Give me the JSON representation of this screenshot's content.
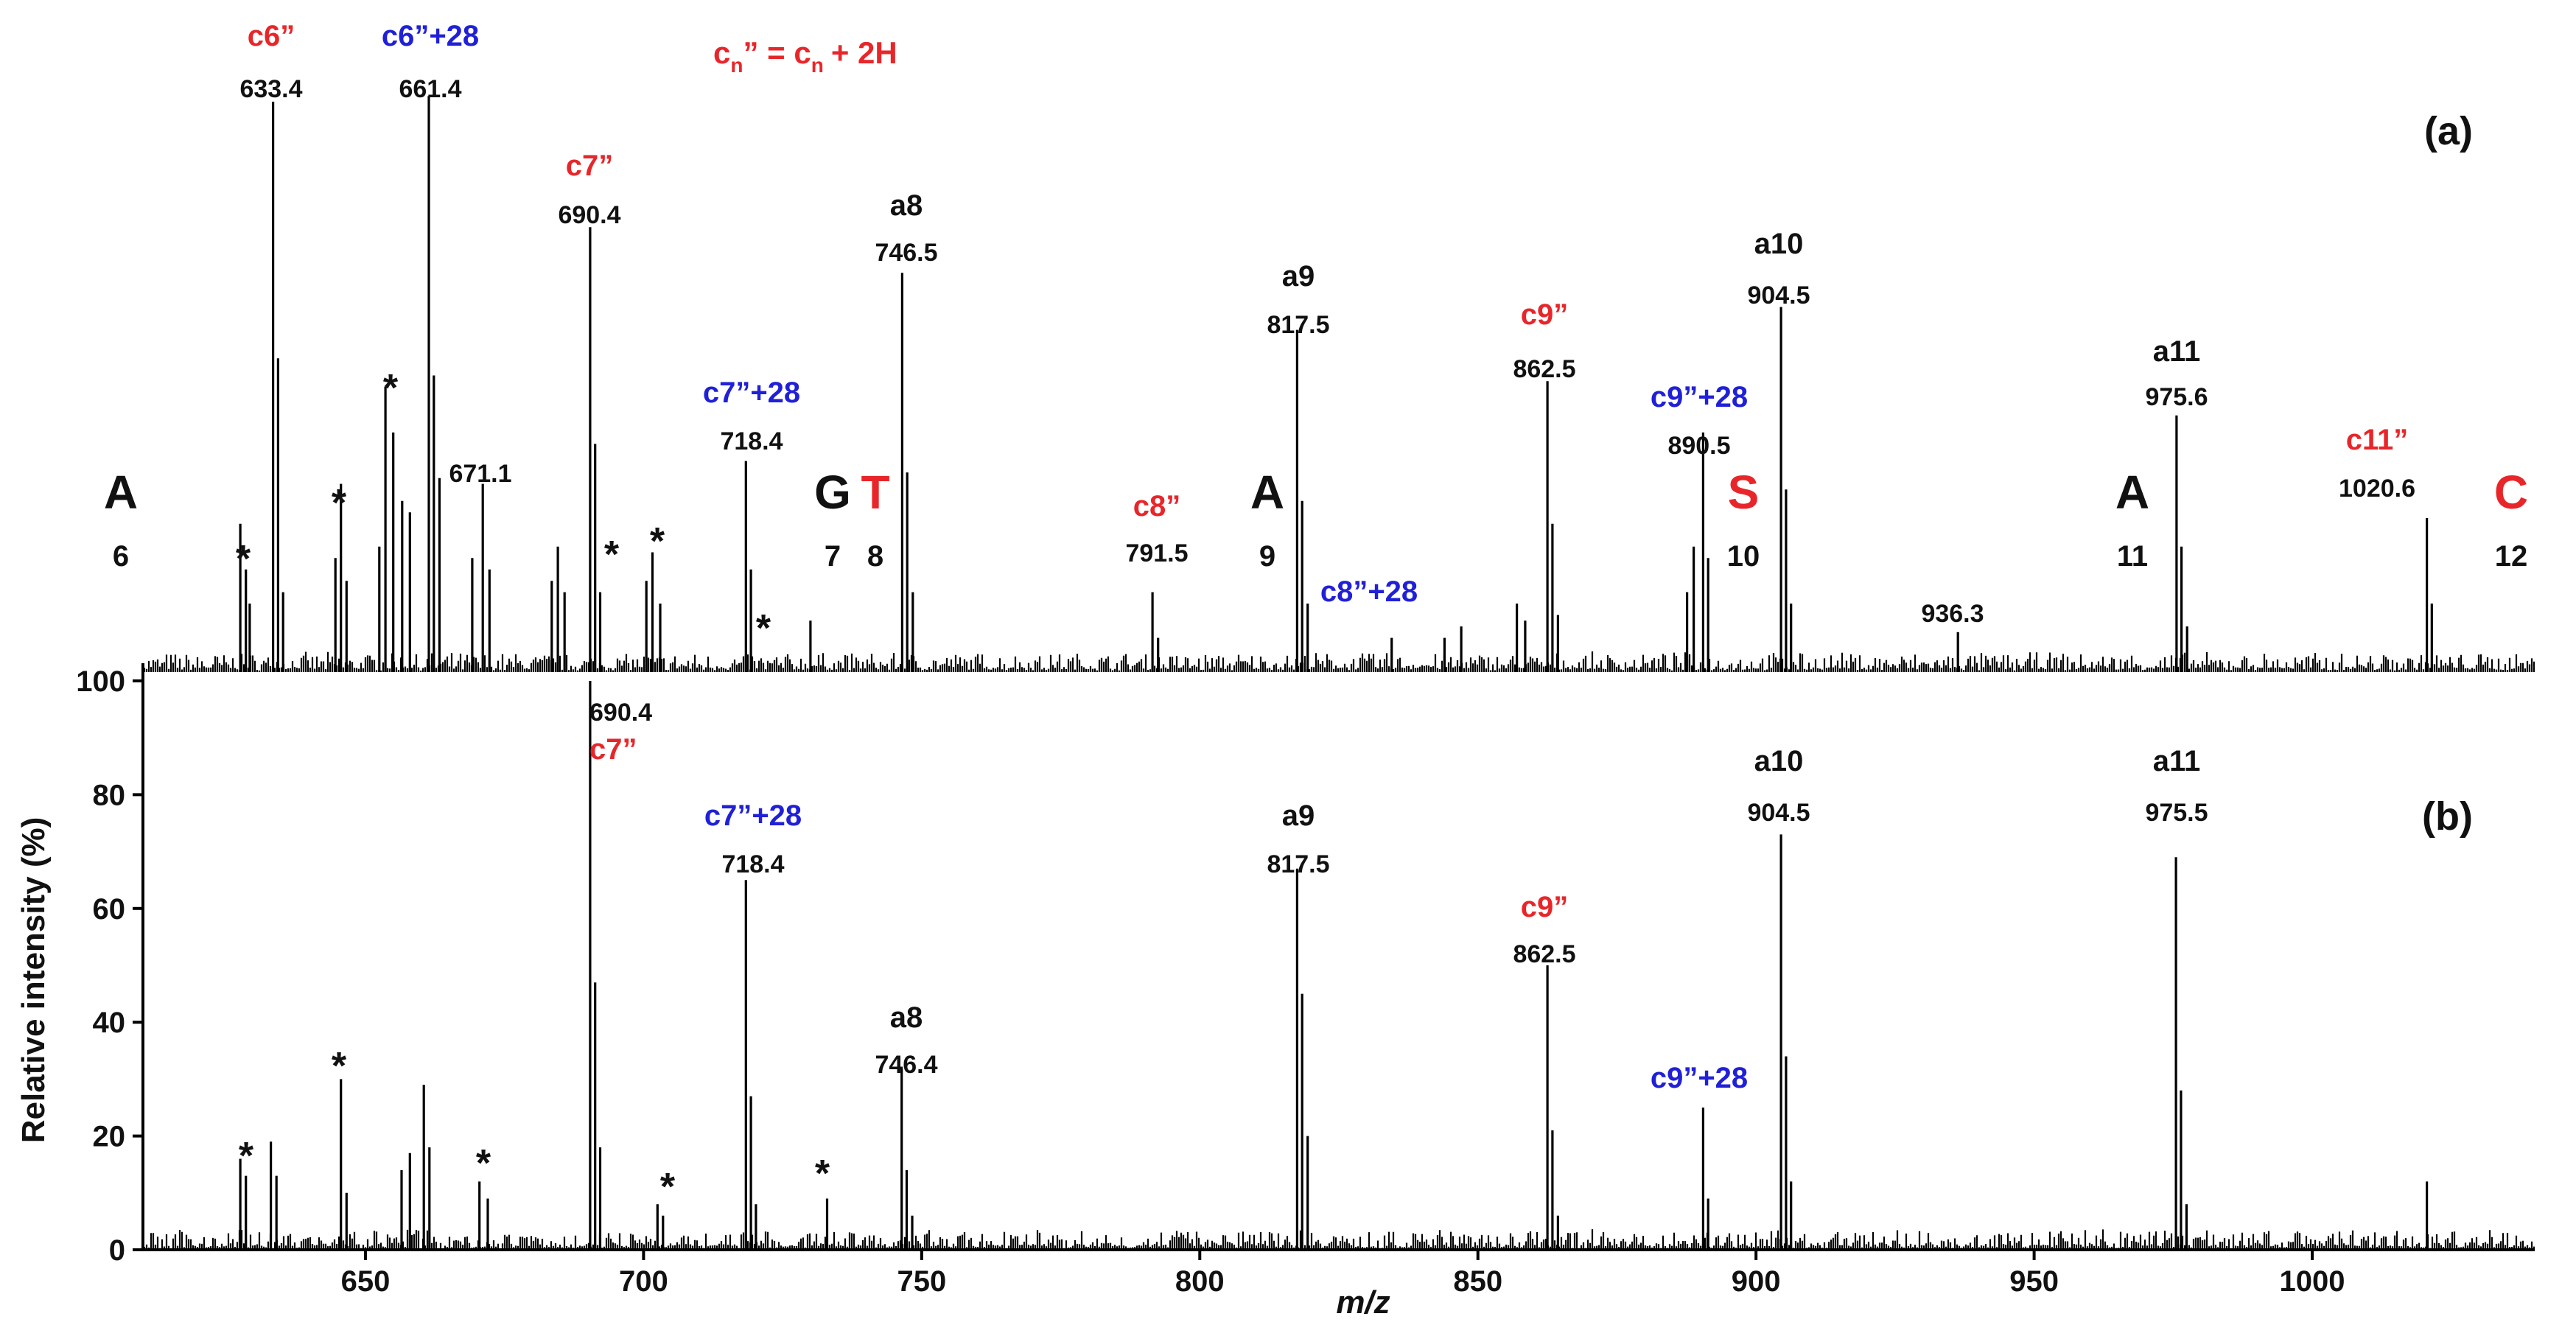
{
  "colors": {
    "black": "#111111",
    "red": "#e8262a",
    "blue": "#2020d8"
  },
  "annotation_equation": {
    "main": "c",
    "sub": "n",
    "mid": "” = c",
    "sub2": "n",
    "end": "+ 2H"
  },
  "chart_data": {
    "type": "mass-spectrum",
    "xlabel": "m/z",
    "ylabel": "Relative intensity (%)",
    "xlim": [
      610,
      1040
    ],
    "ylim": [
      0,
      100
    ],
    "x_ticks": [
      650,
      700,
      750,
      800,
      850,
      900,
      950,
      1000
    ],
    "y_ticks": [
      0,
      20,
      40,
      60,
      80,
      100
    ],
    "panels": [
      {
        "label": "(a)",
        "peaks": [
          {
            "mz": 627.5,
            "rel": 26
          },
          {
            "mz": 628.5,
            "rel": 18
          },
          {
            "mz": 629.2,
            "rel": 12
          },
          {
            "mz": 633.4,
            "rel": 100
          },
          {
            "mz": 634.3,
            "rel": 55
          },
          {
            "mz": 635.2,
            "rel": 14
          },
          {
            "mz": 644.6,
            "rel": 20
          },
          {
            "mz": 645.6,
            "rel": 33
          },
          {
            "mz": 646.6,
            "rel": 16
          },
          {
            "mz": 652.5,
            "rel": 22
          },
          {
            "mz": 653.6,
            "rel": 50
          },
          {
            "mz": 655.0,
            "rel": 42
          },
          {
            "mz": 656.6,
            "rel": 30
          },
          {
            "mz": 658.0,
            "rel": 28
          },
          {
            "mz": 661.4,
            "rel": 101
          },
          {
            "mz": 662.3,
            "rel": 52
          },
          {
            "mz": 663.3,
            "rel": 34
          },
          {
            "mz": 669.2,
            "rel": 20
          },
          {
            "mz": 671.1,
            "rel": 33
          },
          {
            "mz": 672.3,
            "rel": 18
          },
          {
            "mz": 683.5,
            "rel": 16
          },
          {
            "mz": 684.6,
            "rel": 22
          },
          {
            "mz": 685.8,
            "rel": 14
          },
          {
            "mz": 690.4,
            "rel": 78
          },
          {
            "mz": 691.3,
            "rel": 40
          },
          {
            "mz": 692.2,
            "rel": 14
          },
          {
            "mz": 700.5,
            "rel": 16
          },
          {
            "mz": 701.6,
            "rel": 21
          },
          {
            "mz": 703.0,
            "rel": 12
          },
          {
            "mz": 718.4,
            "rel": 37
          },
          {
            "mz": 719.3,
            "rel": 18
          },
          {
            "mz": 730.0,
            "rel": 9
          },
          {
            "mz": 746.5,
            "rel": 70
          },
          {
            "mz": 747.4,
            "rel": 35
          },
          {
            "mz": 748.4,
            "rel": 14
          },
          {
            "mz": 791.5,
            "rel": 14
          },
          {
            "mz": 792.5,
            "rel": 6
          },
          {
            "mz": 817.5,
            "rel": 60
          },
          {
            "mz": 818.4,
            "rel": 30
          },
          {
            "mz": 819.4,
            "rel": 12
          },
          {
            "mz": 834.5,
            "rel": 6
          },
          {
            "mz": 844.0,
            "rel": 6
          },
          {
            "mz": 847.0,
            "rel": 8
          },
          {
            "mz": 857.0,
            "rel": 12
          },
          {
            "mz": 858.5,
            "rel": 9
          },
          {
            "mz": 862.5,
            "rel": 51
          },
          {
            "mz": 863.4,
            "rel": 26
          },
          {
            "mz": 864.4,
            "rel": 10
          },
          {
            "mz": 887.6,
            "rel": 14
          },
          {
            "mz": 888.8,
            "rel": 22
          },
          {
            "mz": 890.5,
            "rel": 42
          },
          {
            "mz": 891.4,
            "rel": 20
          },
          {
            "mz": 904.5,
            "rel": 64
          },
          {
            "mz": 905.4,
            "rel": 32
          },
          {
            "mz": 906.3,
            "rel": 12
          },
          {
            "mz": 936.3,
            "rel": 7
          },
          {
            "mz": 975.6,
            "rel": 45
          },
          {
            "mz": 976.5,
            "rel": 22
          },
          {
            "mz": 977.5,
            "rel": 8
          },
          {
            "mz": 1020.6,
            "rel": 27
          },
          {
            "mz": 1021.5,
            "rel": 12
          }
        ],
        "ion_labels": [
          {
            "text": "c6”",
            "color": "red",
            "mz_value": "633.4"
          },
          {
            "text": "c6”+28",
            "color": "blue",
            "mz_value": "661.4"
          },
          {
            "text": "c7”",
            "color": "red",
            "mz_value": "690.4"
          },
          {
            "text": "c7”+28",
            "color": "blue",
            "mz_value": "718.4"
          },
          {
            "text": "a8",
            "color": "black",
            "mz_value": "746.5"
          },
          {
            "text": "c8”",
            "color": "red",
            "mz_value": "791.5"
          },
          {
            "text": "a9",
            "color": "black",
            "mz_value": "817.5"
          },
          {
            "text": "c8”+28",
            "color": "blue",
            "mz_value": ""
          },
          {
            "text": "c9”",
            "color": "red",
            "mz_value": "862.5"
          },
          {
            "text": "c9”+28",
            "color": "blue",
            "mz_value": "890.5"
          },
          {
            "text": "a10",
            "color": "black",
            "mz_value": "904.5"
          },
          {
            "text": "a11",
            "color": "black",
            "mz_value": "975.6"
          },
          {
            "text": "c11”",
            "color": "red",
            "mz_value": "1020.6"
          },
          {
            "text": "",
            "color": "black",
            "mz_value": "671.1"
          },
          {
            "text": "",
            "color": "black",
            "mz_value": "936.3"
          }
        ],
        "stars": [
          "*",
          "*",
          "*",
          "*",
          "*",
          "*"
        ],
        "residues": [
          {
            "letter": "A",
            "color": "black",
            "number": "6"
          },
          {
            "letter": "G",
            "color": "black",
            "number": "7"
          },
          {
            "letter": "T",
            "color": "red",
            "number": "8"
          },
          {
            "letter": "A",
            "color": "black",
            "number": "9"
          },
          {
            "letter": "S",
            "color": "red",
            "number": "10"
          },
          {
            "letter": "A",
            "color": "black",
            "number": "11"
          },
          {
            "letter": "C",
            "color": "red",
            "number": "12"
          }
        ]
      },
      {
        "label": "(b)",
        "peaks": [
          {
            "mz": 627.5,
            "rel": 16
          },
          {
            "mz": 628.5,
            "rel": 13
          },
          {
            "mz": 633.0,
            "rel": 19
          },
          {
            "mz": 634.0,
            "rel": 13
          },
          {
            "mz": 645.6,
            "rel": 30
          },
          {
            "mz": 646.6,
            "rel": 10
          },
          {
            "mz": 656.5,
            "rel": 14
          },
          {
            "mz": 658.0,
            "rel": 17
          },
          {
            "mz": 660.5,
            "rel": 29
          },
          {
            "mz": 661.5,
            "rel": 18
          },
          {
            "mz": 670.5,
            "rel": 12
          },
          {
            "mz": 672.0,
            "rel": 9
          },
          {
            "mz": 690.4,
            "rel": 100
          },
          {
            "mz": 691.3,
            "rel": 47
          },
          {
            "mz": 692.2,
            "rel": 18
          },
          {
            "mz": 702.5,
            "rel": 8
          },
          {
            "mz": 703.5,
            "rel": 6
          },
          {
            "mz": 718.4,
            "rel": 65
          },
          {
            "mz": 719.3,
            "rel": 27
          },
          {
            "mz": 720.2,
            "rel": 8
          },
          {
            "mz": 733.0,
            "rel": 9
          },
          {
            "mz": 746.4,
            "rel": 32
          },
          {
            "mz": 747.3,
            "rel": 14
          },
          {
            "mz": 748.3,
            "rel": 6
          },
          {
            "mz": 817.5,
            "rel": 67
          },
          {
            "mz": 818.4,
            "rel": 45
          },
          {
            "mz": 819.4,
            "rel": 20
          },
          {
            "mz": 862.5,
            "rel": 50
          },
          {
            "mz": 863.4,
            "rel": 21
          },
          {
            "mz": 864.4,
            "rel": 6
          },
          {
            "mz": 890.5,
            "rel": 25
          },
          {
            "mz": 891.4,
            "rel": 9
          },
          {
            "mz": 904.5,
            "rel": 73
          },
          {
            "mz": 905.4,
            "rel": 34
          },
          {
            "mz": 906.3,
            "rel": 12
          },
          {
            "mz": 975.5,
            "rel": 69
          },
          {
            "mz": 976.4,
            "rel": 28
          },
          {
            "mz": 977.4,
            "rel": 8
          },
          {
            "mz": 1020.6,
            "rel": 12
          }
        ],
        "ion_labels": [
          {
            "text": "c7”",
            "color": "red",
            "mz_value": "690.4"
          },
          {
            "text": "c7”+28",
            "color": "blue",
            "mz_value": "718.4"
          },
          {
            "text": "a8",
            "color": "black",
            "mz_value": "746.4"
          },
          {
            "text": "a9",
            "color": "black",
            "mz_value": "817.5"
          },
          {
            "text": "c9”",
            "color": "red",
            "mz_value": "862.5"
          },
          {
            "text": "c9”+28",
            "color": "blue",
            "mz_value": ""
          },
          {
            "text": "a10",
            "color": "black",
            "mz_value": "904.5"
          },
          {
            "text": "a11",
            "color": "black",
            "mz_value": "975.5"
          }
        ],
        "stars": [
          "*",
          "*",
          "*",
          "*",
          "*"
        ]
      }
    ]
  }
}
